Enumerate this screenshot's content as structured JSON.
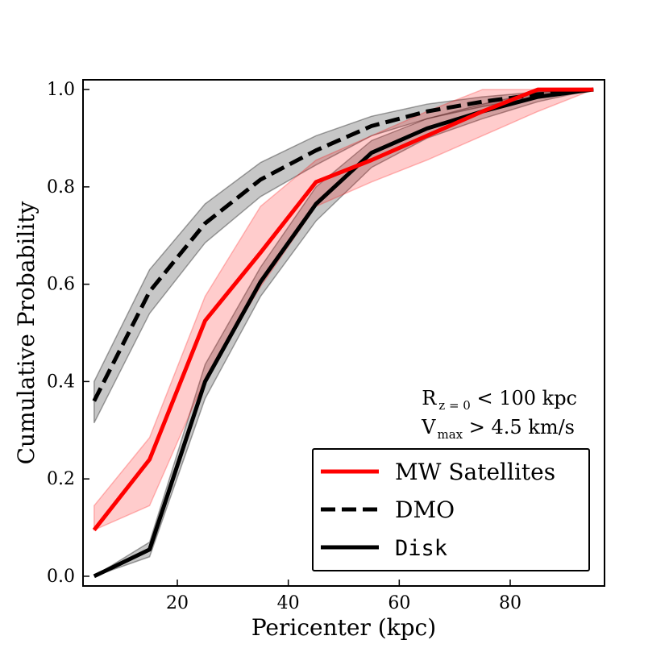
{
  "chart_data": {
    "type": "line",
    "title": "",
    "xlabel": "Pericenter (kpc)",
    "ylabel": "Cumulative Probability",
    "xlim": [
      3,
      97
    ],
    "ylim": [
      -0.02,
      1.02
    ],
    "xticks": [
      20,
      40,
      60,
      80
    ],
    "yticks": [
      0.0,
      0.2,
      0.4,
      0.6,
      0.8,
      1.0
    ],
    "xtick_labels": [
      "20",
      "40",
      "60",
      "80"
    ],
    "ytick_labels": [
      "0.0",
      "0.2",
      "0.4",
      "0.6",
      "0.8",
      "1.0"
    ],
    "grid": false,
    "legend_position": "lower-right",
    "annotation": {
      "line1_main": "R",
      "line1_sub": "z = 0",
      "line1_rest": " < 100 kpc",
      "line2_main": "V",
      "line2_sub": "max",
      "line2_rest": " > 4.5 km/s"
    },
    "series": [
      {
        "name": "MW Satellites",
        "color": "#ff0000",
        "style": "solid",
        "x": [
          5,
          15,
          25,
          35,
          45,
          55,
          65,
          75,
          85,
          95
        ],
        "values": [
          0.095,
          0.24,
          0.525,
          0.665,
          0.81,
          0.855,
          0.905,
          0.955,
          1.0,
          1.0
        ],
        "band_upper": [
          0.145,
          0.285,
          0.575,
          0.76,
          0.855,
          0.905,
          0.955,
          1.0,
          1.0,
          1.0
        ],
        "band_lower": [
          0.095,
          0.145,
          0.405,
          0.595,
          0.76,
          0.81,
          0.855,
          0.905,
          0.955,
          1.0
        ],
        "band_color": "#ff0000"
      },
      {
        "name": "DMO",
        "color": "#000000",
        "style": "dashed",
        "x": [
          5,
          15,
          25,
          35,
          45,
          55,
          65,
          75,
          85,
          95
        ],
        "values": [
          0.36,
          0.585,
          0.725,
          0.815,
          0.875,
          0.925,
          0.955,
          0.975,
          0.99,
          1.0
        ],
        "band_upper": [
          0.4,
          0.63,
          0.765,
          0.85,
          0.905,
          0.945,
          0.97,
          0.985,
          0.995,
          1.0
        ],
        "band_lower": [
          0.315,
          0.54,
          0.685,
          0.78,
          0.845,
          0.905,
          0.94,
          0.965,
          0.985,
          1.0
        ],
        "band_color": "#000000"
      },
      {
        "name": "Disk",
        "color": "#000000",
        "style": "solid",
        "x": [
          5,
          15,
          25,
          35,
          45,
          55,
          65,
          75,
          85,
          95
        ],
        "values": [
          0.0,
          0.055,
          0.4,
          0.605,
          0.765,
          0.87,
          0.92,
          0.955,
          0.985,
          1.0
        ],
        "band_upper": [
          0.0,
          0.07,
          0.435,
          0.635,
          0.8,
          0.895,
          0.94,
          0.97,
          0.995,
          1.0
        ],
        "band_lower": [
          0.0,
          0.04,
          0.365,
          0.575,
          0.73,
          0.84,
          0.9,
          0.94,
          0.975,
          1.0
        ],
        "band_color": "#000000"
      }
    ]
  }
}
